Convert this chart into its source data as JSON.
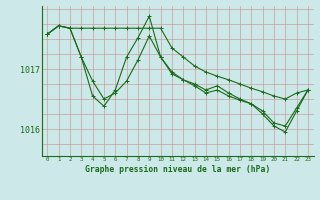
{
  "background_color": "#cce8e8",
  "line_color": "#1a6b1a",
  "grid_color_v": "#c8a0a0",
  "grid_color_h": "#c8a0a0",
  "ylabel_values": [
    1016,
    1017
  ],
  "xlabel_values": [
    0,
    1,
    2,
    3,
    4,
    5,
    6,
    7,
    8,
    9,
    10,
    11,
    12,
    13,
    14,
    15,
    16,
    17,
    18,
    19,
    20,
    21,
    22,
    23
  ],
  "xlabel_label": "Graphe pression niveau de la mer (hPa)",
  "xlim": [
    -0.5,
    23.5
  ],
  "ylim": [
    1015.55,
    1018.05
  ],
  "series1": [
    1017.58,
    1017.72,
    1017.68,
    1017.68,
    1017.68,
    1017.68,
    1017.68,
    1017.68,
    1017.68,
    1017.68,
    1017.68,
    1017.35,
    1017.2,
    1017.05,
    1016.95,
    1016.88,
    1016.82,
    1016.75,
    1016.68,
    1016.62,
    1016.55,
    1016.5,
    1016.6,
    1016.65
  ],
  "series2": [
    1017.58,
    1017.72,
    1017.68,
    1017.2,
    1016.8,
    1016.5,
    1016.6,
    1016.8,
    1017.15,
    1017.55,
    1017.2,
    1016.95,
    1016.82,
    1016.72,
    1016.6,
    1016.65,
    1016.55,
    1016.48,
    1016.42,
    1016.3,
    1016.1,
    1016.05,
    1016.35,
    1016.65
  ],
  "series3": [
    1017.58,
    1017.72,
    1017.68,
    1017.2,
    1016.55,
    1016.38,
    1016.65,
    1017.2,
    1017.52,
    1017.88,
    1017.2,
    1016.92,
    1016.82,
    1016.75,
    1016.65,
    1016.72,
    1016.6,
    1016.5,
    1016.42,
    1016.25,
    1016.05,
    1015.95,
    1016.3,
    1016.65
  ],
  "marker": "+",
  "markersize": 3,
  "linewidth": 0.8
}
